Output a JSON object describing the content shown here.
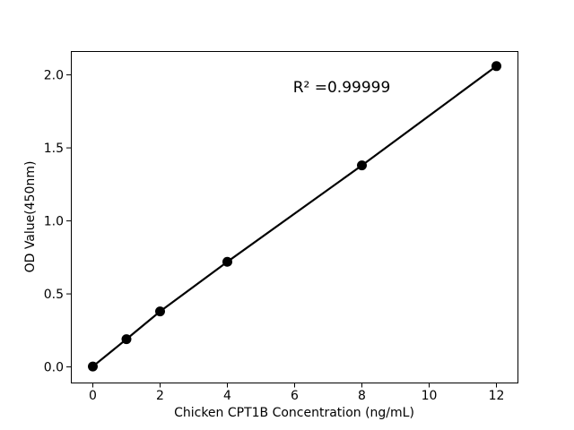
{
  "figure": {
    "background": "#ffffff",
    "text_color": "#000000"
  },
  "chart_data": {
    "type": "scatter",
    "title": "",
    "xlabel": "Chicken CPT1B Concentration (ng/mL)",
    "ylabel": "OD Value(450nm)",
    "annotation": {
      "text": "R² =0.99999",
      "x": 7.4,
      "y": 1.86
    },
    "x": [
      0,
      1,
      2,
      4,
      8,
      12
    ],
    "y": [
      0.003,
      0.19,
      0.38,
      0.72,
      1.38,
      2.06
    ],
    "series_name": "Chicken CPT1B standard curve",
    "line": true,
    "line_color": "#000000",
    "marker_color": "#000000",
    "xticks": [
      0,
      2,
      4,
      6,
      8,
      10,
      12
    ],
    "xtick_labels": [
      "0",
      "2",
      "4",
      "6",
      "8",
      "10",
      "12"
    ],
    "yticks": [
      0.0,
      0.5,
      1.0,
      1.5,
      2.0
    ],
    "ytick_labels": [
      "0.0",
      "0.5",
      "1.0",
      "1.5",
      "2.0"
    ],
    "xlim": [
      -0.64,
      12.64
    ],
    "ylim": [
      -0.11,
      2.16
    ],
    "grid": false,
    "legend": null
  }
}
